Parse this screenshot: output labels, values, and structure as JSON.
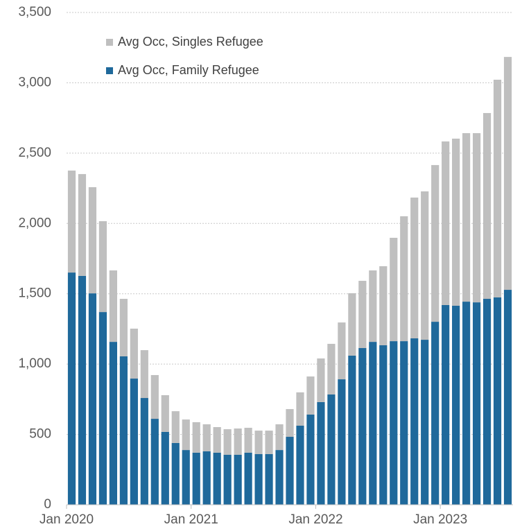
{
  "chart_data": {
    "type": "stacked_bar",
    "categories": [
      "Jan 2020",
      null,
      null,
      null,
      null,
      null,
      null,
      null,
      null,
      null,
      null,
      null,
      "Jan 2021",
      null,
      null,
      null,
      null,
      null,
      null,
      null,
      null,
      null,
      null,
      null,
      "Jan 2022",
      null,
      null,
      null,
      null,
      null,
      null,
      null,
      null,
      null,
      null,
      null,
      "Jan 2023",
      null,
      null,
      null,
      null,
      null,
      null
    ],
    "series": [
      {
        "name": "Avg Occ, Singles Refugee",
        "color": "#bfbfbf",
        "values": [
          725,
          724,
          755,
          646,
          508,
          409,
          355,
          340,
          311,
          261,
          226,
          217,
          217,
          192,
          182,
          182,
          187,
          177,
          167,
          167,
          183,
          197,
          237,
          271,
          310,
          360,
          404,
          444,
          478,
          508,
          562,
          735,
          888,
          1001,
          1055,
          1114,
          1163,
          1188,
          1198,
          1203,
          1321,
          1548,
          1656
        ]
      },
      {
        "name": "Avg Occ, Family Refugee",
        "color": "#1f699b",
        "values": [
          1651,
          1627,
          1503,
          1370,
          1158,
          1055,
          897,
          759,
          611,
          518,
          439,
          389,
          370,
          380,
          370,
          355,
          355,
          370,
          360,
          360,
          389,
          483,
          562,
          641,
          730,
          784,
          892,
          1060,
          1114,
          1158,
          1134,
          1163,
          1163,
          1183,
          1173,
          1301,
          1420,
          1415,
          1444,
          1439,
          1464,
          1474,
          1528
        ]
      }
    ],
    "ylim": [
      0,
      3500
    ],
    "yticks": [
      0,
      500,
      {
        "value": 1000,
        "label": "1,000"
      },
      {
        "value": 1500,
        "label": "1,500"
      },
      {
        "value": 2000,
        "label": "2,000"
      },
      {
        "value": 2500,
        "label": "2,500"
      },
      {
        "value": 3000,
        "label": "3,000"
      },
      {
        "value": 3500,
        "label": "3,500"
      }
    ],
    "grid": true,
    "legend": "upper left"
  }
}
